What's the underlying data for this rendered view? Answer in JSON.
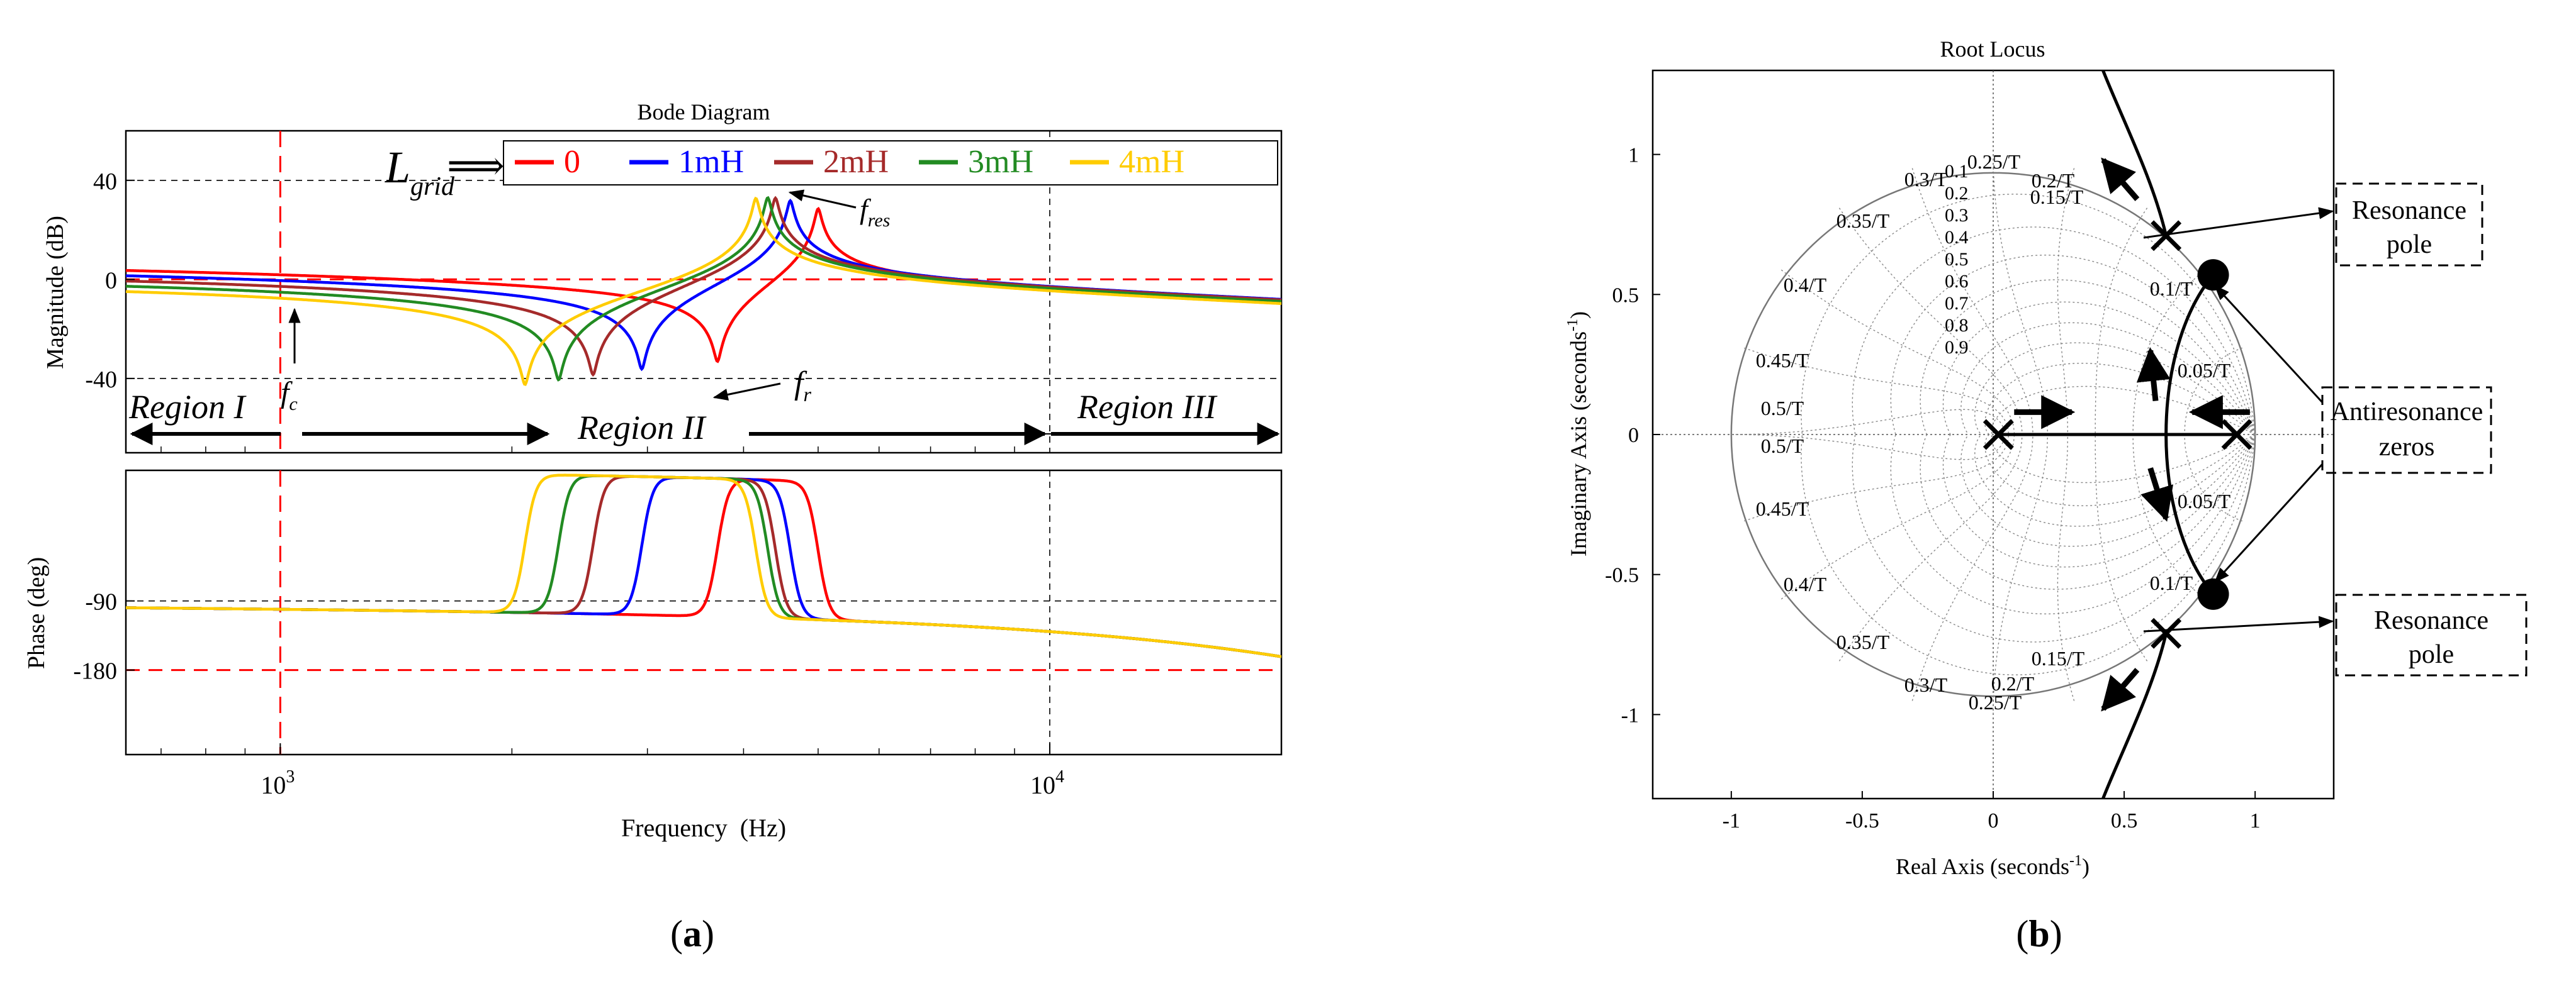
{
  "chart_data": [
    {
      "panel": "(a)",
      "type": "line",
      "title": "Bode Diagram",
      "xlabel": "Frequency  (Hz)",
      "xscale": "log",
      "xlim": [
        630,
        20000
      ],
      "xticks": [
        {
          "value": 1000,
          "base": "10",
          "exp": "3"
        },
        {
          "value": 10000,
          "base": "10",
          "exp": "4"
        }
      ],
      "magnitude": {
        "ylabel": "Magnitude (dB)",
        "ylim": [
          -70,
          60
        ],
        "yticks": [
          "40",
          "0",
          "-40"
        ],
        "ytick_values": [
          40,
          0,
          -40
        ]
      },
      "phase": {
        "ylabel": "Phase (deg)",
        "ylim": [
          -290,
          80
        ],
        "yticks": [
          "-90",
          "-180"
        ],
        "ytick_values": [
          -90,
          -180
        ]
      },
      "legend": {
        "title_main": "L",
        "title_sub": "grid",
        "arrow": "⟹"
      },
      "series": [
        {
          "name": "0",
          "color": "#ff0000",
          "f_antires": 3700,
          "f_res": 5000,
          "mag_at_600Hz": 4
        },
        {
          "name": "1mH",
          "color": "#0000ff",
          "f_antires": 2950,
          "f_res": 4600,
          "mag_at_600Hz": 2
        },
        {
          "name": "2mH",
          "color": "#a52a2a",
          "f_antires": 2550,
          "f_res": 4400,
          "mag_at_600Hz": 0
        },
        {
          "name": "3mH",
          "color": "#228b22",
          "f_antires": 2300,
          "f_res": 4300,
          "mag_at_600Hz": -2
        },
        {
          "name": "4mH",
          "color": "#ffcc00",
          "f_antires": 2080,
          "f_res": 4150,
          "mag_at_600Hz": -4
        }
      ],
      "annotations": {
        "fc_main": "f",
        "fc_sub": "c",
        "fc_freq": 1000,
        "fr_main": "f",
        "fr_sub": "r",
        "fres_main": "f",
        "fres_sub": "res",
        "region1": "Region I",
        "region2": "Region II",
        "region3": "Region III"
      },
      "reference_lines": {
        "mag_dB": [
          40,
          0,
          -40
        ],
        "phase_deg": [
          -90,
          -180
        ],
        "freq_Hz": [
          1000,
          10000
        ]
      }
    },
    {
      "panel": "(b)",
      "type": "root-locus",
      "title": "Root Locus",
      "xlabel_main": "Real Axis (seconds",
      "xlabel_sup": "-1",
      "xlabel_end": ")",
      "ylabel_main": "Imaginary Axis (seconds",
      "ylabel_sup": "-1",
      "ylabel_end": ")",
      "xlim": [
        -1.3,
        1.3
      ],
      "ylim": [
        -1.3,
        1.3
      ],
      "xticks": [
        "-1",
        "-0.5",
        "0",
        "0.5",
        "1"
      ],
      "xtick_values": [
        -1,
        -0.5,
        0,
        0.5,
        1
      ],
      "yticks": [
        "1",
        "0.5",
        "0",
        "-0.5",
        "-1"
      ],
      "ytick_values": [
        1,
        0.5,
        0,
        -0.5,
        -1
      ],
      "damping_labels": [
        "0.1",
        "0.2",
        "0.3",
        "0.4",
        "0.5",
        "0.6",
        "0.7",
        "0.8",
        "0.9"
      ],
      "wn_labels": [
        "0.1/T",
        "0.15/T",
        "0.2/T",
        "0.25/T",
        "0.3/T",
        "0.35/T",
        "0.4/T",
        "0.45/T",
        "0.5/T"
      ],
      "wn_labels_lower": [
        "0.05/T",
        "0.1/T",
        "0.15/T",
        "0.2/T",
        "0.25/T",
        "0.3/T",
        "0.35/T",
        "0.4/T",
        "0.45/T",
        "0.5/T"
      ],
      "wn_upper_first": "0.05/T",
      "poles": [
        {
          "re": 0.02,
          "im": 0
        },
        {
          "re": 0.93,
          "im": 0
        },
        {
          "re": 0.66,
          "im": 0.71
        },
        {
          "re": 0.66,
          "im": -0.71
        }
      ],
      "zeros": [
        {
          "re": 0.84,
          "im": 0.57
        },
        {
          "re": 0.84,
          "im": -0.57
        }
      ],
      "callouts": {
        "resonance_top_1": "Resonance",
        "resonance_top_2": "pole",
        "antiresonance_1": "Antiresonance",
        "antiresonance_2": "zeros",
        "resonance_bottom_1": "Resonance",
        "resonance_bottom_2": "pole"
      }
    }
  ],
  "panel_labels": {
    "a_open": "(",
    "a_letter": "a",
    "a_close": ")",
    "b_open": "(",
    "b_letter": "b",
    "b_close": ")"
  }
}
